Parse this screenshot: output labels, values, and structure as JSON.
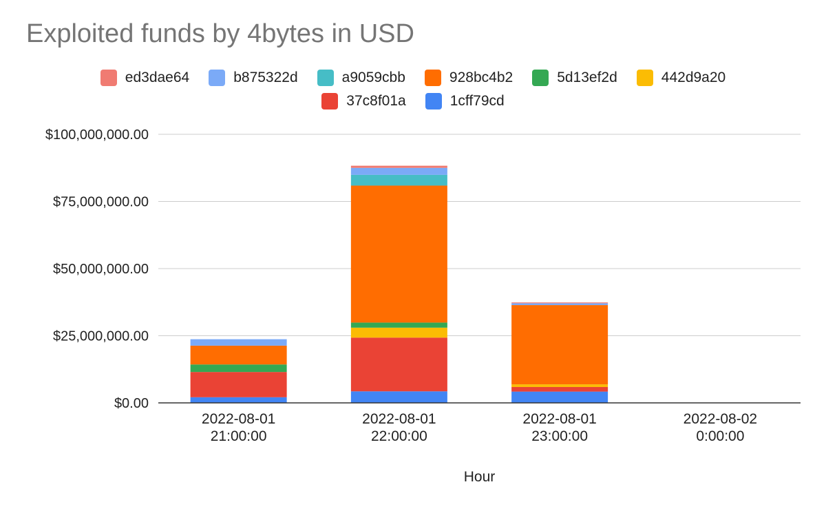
{
  "chart_data": {
    "type": "bar",
    "stacked": true,
    "title": "Exploited funds by 4bytes in USD",
    "xlabel": "Hour",
    "ylabel": "",
    "ylim": [
      0,
      100000000
    ],
    "yticks": [
      {
        "value": 0,
        "label": "$0.00"
      },
      {
        "value": 25000000,
        "label": "$25,000,000.00"
      },
      {
        "value": 50000000,
        "label": "$50,000,000.00"
      },
      {
        "value": 75000000,
        "label": "$75,000,000.00"
      },
      {
        "value": 100000000,
        "label": "$100,000,000.00"
      }
    ],
    "grid": true,
    "legend_position": "top",
    "categories": [
      {
        "line1": "2022-08-01",
        "line2": "21:00:00"
      },
      {
        "line1": "2022-08-01",
        "line2": "22:00:00"
      },
      {
        "line1": "2022-08-01",
        "line2": "23:00:00"
      },
      {
        "line1": "2022-08-02",
        "line2": "0:00:00"
      }
    ],
    "series": [
      {
        "name": "1cff79cd",
        "color": "#4285f4",
        "values": [
          2100000,
          4300000,
          4200000,
          0
        ]
      },
      {
        "name": "37c8f01a",
        "color": "#ea4335",
        "values": [
          9400000,
          20000000,
          1700000,
          0
        ]
      },
      {
        "name": "442d9a20",
        "color": "#fbbc04",
        "values": [
          0,
          3700000,
          1000000,
          0
        ]
      },
      {
        "name": "5d13ef2d",
        "color": "#34a853",
        "values": [
          2800000,
          1900000,
          0,
          0
        ]
      },
      {
        "name": "928bc4b2",
        "color": "#ff6d01",
        "values": [
          7000000,
          51000000,
          29500000,
          0
        ]
      },
      {
        "name": "a9059cbb",
        "color": "#46bdc6",
        "values": [
          0,
          4000000,
          0,
          0
        ]
      },
      {
        "name": "b875322d",
        "color": "#7baaf7",
        "values": [
          2400000,
          2600000,
          700000,
          0
        ]
      },
      {
        "name": "ed3dae64",
        "color": "#f07b72",
        "values": [
          0,
          800000,
          300000,
          0
        ]
      }
    ],
    "legend_rows": [
      [
        "ed3dae64",
        "b875322d",
        "a9059cbb",
        "928bc4b2",
        "5d13ef2d",
        "442d9a20"
      ],
      [
        "37c8f01a",
        "1cff79cd"
      ]
    ]
  }
}
